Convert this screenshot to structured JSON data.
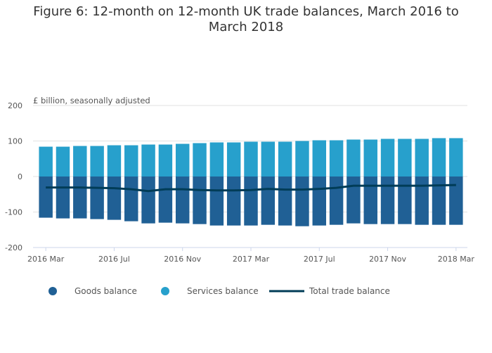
{
  "chart_data": {
    "type": "bar",
    "title": "Figure 6: 12-month on 12-month UK trade balances, March 2016 to March 2018",
    "ylabel": "£ billion, seasonally adjusted",
    "ylim": [
      -200,
      200
    ],
    "yticks": [
      "200",
      "100",
      "0",
      "-100",
      "-200"
    ],
    "xtick_labels": [
      "2016 Mar",
      "2016 Jul",
      "2016 Nov",
      "2017 Mar",
      "2017 Jul",
      "2017 Nov",
      "2018 Mar"
    ],
    "categories": [
      "2016 Mar",
      "2016 Apr",
      "2016 May",
      "2016 Jun",
      "2016 Jul",
      "2016 Aug",
      "2016 Sep",
      "2016 Oct",
      "2016 Nov",
      "2016 Dec",
      "2017 Jan",
      "2017 Feb",
      "2017 Mar",
      "2017 Apr",
      "2017 May",
      "2017 Jun",
      "2017 Jul",
      "2017 Aug",
      "2017 Sep",
      "2017 Oct",
      "2017 Nov",
      "2017 Dec",
      "2018 Jan",
      "2018 Feb",
      "2018 Mar"
    ],
    "series": [
      {
        "name": "Goods balance",
        "type": "bar",
        "color": "#206095",
        "values": [
          -116,
          -118,
          -118,
          -120,
          -122,
          -126,
          -132,
          -130,
          -132,
          -134,
          -138,
          -138,
          -138,
          -136,
          -138,
          -140,
          -138,
          -136,
          -132,
          -134,
          -134,
          -134,
          -136,
          -136,
          -136
        ]
      },
      {
        "name": "Services balance",
        "type": "bar",
        "color": "#27a0cc",
        "values": [
          84,
          84,
          86,
          86,
          88,
          88,
          90,
          90,
          92,
          94,
          96,
          96,
          98,
          98,
          98,
          100,
          102,
          102,
          104,
          104,
          106,
          106,
          106,
          108,
          108
        ]
      },
      {
        "name": "Total trade balance",
        "type": "line",
        "color": "#003c57",
        "values": [
          -31,
          -31,
          -31,
          -32,
          -33,
          -36,
          -41,
          -36,
          -36,
          -38,
          -39,
          -39,
          -38,
          -35,
          -37,
          -37,
          -35,
          -32,
          -26,
          -26,
          -26,
          -26,
          -26,
          -25,
          -24
        ]
      }
    ],
    "legend": "bottom"
  }
}
